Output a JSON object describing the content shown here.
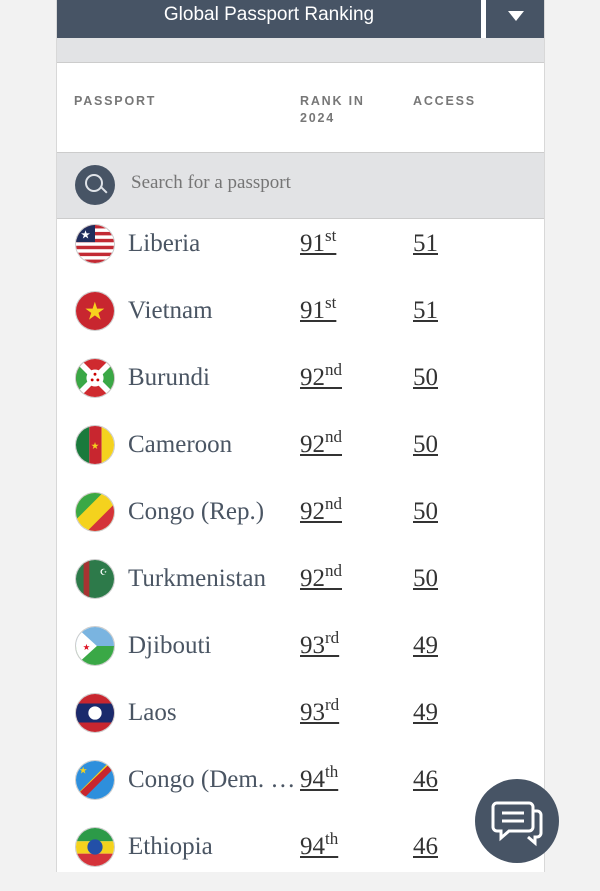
{
  "header": {
    "title": "Global Passport Ranking"
  },
  "columns": {
    "passport": "PASSPORT",
    "rank": "RANK IN 2024",
    "access": "ACCESS"
  },
  "search": {
    "placeholder": "Search for a passport"
  },
  "rows": [
    {
      "name": "Liberia",
      "rank": "91",
      "suffix": "st",
      "access": "51",
      "flag": "liberia"
    },
    {
      "name": "Vietnam",
      "rank": "91",
      "suffix": "st",
      "access": "51",
      "flag": "vietnam"
    },
    {
      "name": "Burundi",
      "rank": "92",
      "suffix": "nd",
      "access": "50",
      "flag": "burundi"
    },
    {
      "name": "Cameroon",
      "rank": "92",
      "suffix": "nd",
      "access": "50",
      "flag": "cameroon"
    },
    {
      "name": "Congo (Rep.)",
      "rank": "92",
      "suffix": "nd",
      "access": "50",
      "flag": "congo"
    },
    {
      "name": "Turkmenistan",
      "rank": "92",
      "suffix": "nd",
      "access": "50",
      "flag": "turkmenistan"
    },
    {
      "name": "Djibouti",
      "rank": "93",
      "suffix": "rd",
      "access": "49",
      "flag": "djibouti"
    },
    {
      "name": "Laos",
      "rank": "93",
      "suffix": "rd",
      "access": "49",
      "flag": "laos"
    },
    {
      "name": "Congo (Dem. Rep.)",
      "rank": "94",
      "suffix": "th",
      "access": "46",
      "flag": "drc"
    },
    {
      "name": "Ethiopia",
      "rank": "94",
      "suffix": "th",
      "access": "46",
      "flag": "ethiopia"
    }
  ],
  "colors": {
    "accent": "#475465"
  }
}
